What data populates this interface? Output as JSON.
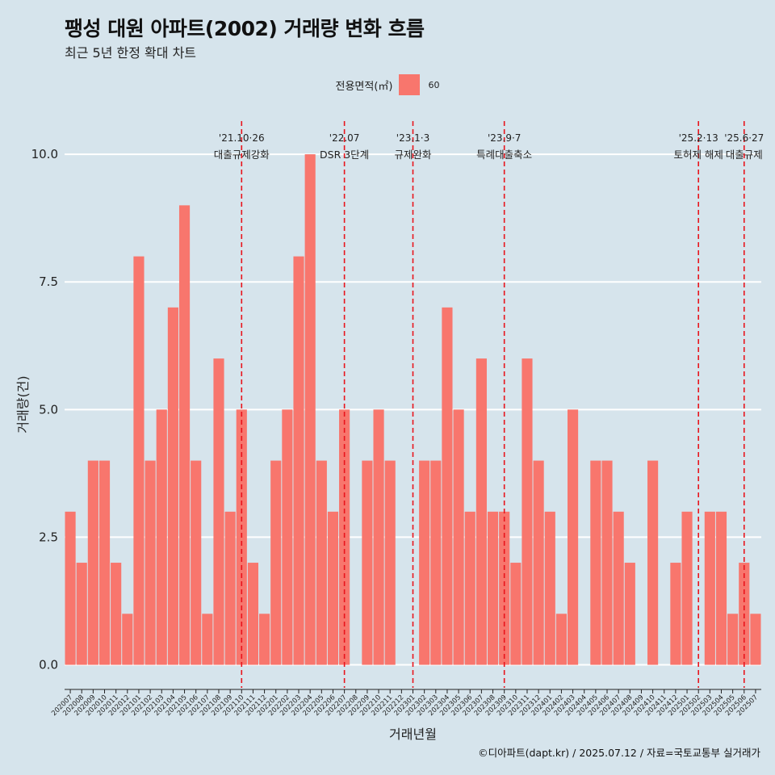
{
  "chart_data": {
    "type": "bar",
    "title": "팽성 대원 아파트(2002) 거래량 변화 흐름",
    "subtitle": "최근 5년 한정 확대 차트",
    "xlabel": "거래년월",
    "ylabel": "거래량(건)",
    "caption": "©디아파트(dapt.kr) / 2025.07.12 / 자료=국토교통부 실거래가",
    "legend": {
      "title": "전용면적(㎡)",
      "label": "60",
      "color": "#f8766d",
      "position": "top"
    },
    "categories": [
      "202007",
      "202008",
      "202009",
      "202010",
      "202011",
      "202012",
      "202101",
      "202102",
      "202103",
      "202104",
      "202105",
      "202106",
      "202107",
      "202108",
      "202109",
      "202110",
      "202111",
      "202112",
      "202201",
      "202202",
      "202203",
      "202204",
      "202205",
      "202206",
      "202207",
      "202208",
      "202209",
      "202210",
      "202211",
      "202212",
      "202301",
      "202302",
      "202303",
      "202304",
      "202305",
      "202306",
      "202307",
      "202308",
      "202309",
      "202310",
      "202311",
      "202312",
      "202401",
      "202402",
      "202403",
      "202404",
      "202405",
      "202406",
      "202407",
      "202408",
      "202409",
      "202410",
      "202411",
      "202412",
      "202501",
      "202502",
      "202503",
      "202504",
      "202505",
      "202506",
      "202507"
    ],
    "values": [
      3,
      2,
      4,
      4,
      2,
      1,
      8,
      4,
      5,
      7,
      9,
      4,
      1,
      6,
      3,
      5,
      2,
      1,
      4,
      5,
      8,
      10,
      4,
      3,
      5,
      0,
      4,
      5,
      4,
      0,
      0,
      4,
      4,
      7,
      5,
      3,
      6,
      3,
      3,
      2,
      6,
      4,
      3,
      1,
      5,
      0,
      4,
      4,
      3,
      2,
      0,
      4,
      0,
      2,
      3,
      0,
      3,
      3,
      1,
      2,
      1
    ],
    "y_ticks": [
      "0.0",
      "2.5",
      "5.0",
      "7.5",
      "10.0"
    ],
    "ylim": [
      -0.45,
      10.65
    ],
    "grid": true,
    "events": [
      {
        "index": 15,
        "date": "'21.10·26",
        "label": "대출규제강화"
      },
      {
        "index": 24,
        "date": "'22.07",
        "label": "DSR 3단계"
      },
      {
        "index": 30,
        "date": "'23.1·3",
        "label": "규제완화"
      },
      {
        "index": 38,
        "date": "'23.9·7",
        "label": "특례대출축소"
      },
      {
        "index": 55,
        "date": "'25.2·13",
        "label": "토허제 해제"
      },
      {
        "index": 59,
        "date": "'25.6·27",
        "label": "대출규제"
      }
    ]
  }
}
